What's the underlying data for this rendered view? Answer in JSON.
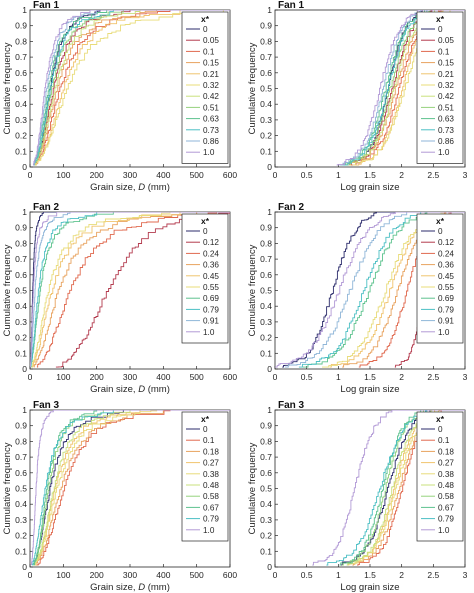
{
  "colors": {
    "0": "#2b2b6b",
    "0.05": "#b33a4d",
    "0.1": "#e0694f",
    "0.12": "#b33a4d",
    "0.15": "#e8a25e",
    "0.18": "#e8a25e",
    "0.21": "#f0c46e",
    "0.24": "#e0694f",
    "0.27": "#f0c46e",
    "0.32": "#e8dc7a",
    "0.36": "#e8a25e",
    "0.38": "#e8dc7a",
    "0.42": "#c9e07c",
    "0.45": "#f0c46e",
    "0.48": "#c9e07c",
    "0.51": "#95d27e",
    "0.55": "#e8dc7a",
    "0.58": "#95d27e",
    "0.63": "#5dc28e",
    "0.67": "#5dc28e",
    "0.69": "#5dc28e",
    "0.73": "#4bbfc4",
    "0.79": "#4bbfc4",
    "0.86": "#8fb6d8",
    "0.91": "#8fb6d8",
    "1.0": "#b29ad6"
  },
  "chart_data": [
    {
      "type": "line",
      "panel": "fan1-linear",
      "title": "Fan 1",
      "xlabel_prefix": "Grain size, ",
      "xlabel_var": "D",
      "xlabel_suffix": " (mm)",
      "ylabel": "Cumulative frequency",
      "xlim": [
        0,
        600
      ],
      "ylim": [
        0,
        1
      ],
      "scale": "linear",
      "xticks": [
        "0",
        "100",
        "200",
        "300",
        "400",
        "500",
        "600"
      ],
      "yticks": [
        "0",
        "0.1",
        "0.2",
        "0.3",
        "0.4",
        "0.5",
        "0.6",
        "0.7",
        "0.8",
        "0.9",
        "1"
      ],
      "legend_title": "x*",
      "legend_position": "top-right",
      "series": [
        {
          "name": "0",
          "d50": 60,
          "dmax": 210
        },
        {
          "name": "0.05",
          "d50": 70,
          "dmax": 300
        },
        {
          "name": "0.1",
          "d50": 90,
          "dmax": 420
        },
        {
          "name": "0.15",
          "d50": 80,
          "dmax": 380
        },
        {
          "name": "0.21",
          "d50": 100,
          "dmax": 450
        },
        {
          "name": "0.32",
          "d50": 110,
          "dmax": 580
        },
        {
          "name": "0.42",
          "d50": 75,
          "dmax": 330
        },
        {
          "name": "0.51",
          "d50": 65,
          "dmax": 280
        },
        {
          "name": "0.63",
          "d50": 55,
          "dmax": 230
        },
        {
          "name": "0.73",
          "d50": 60,
          "dmax": 250
        },
        {
          "name": "0.86",
          "d50": 50,
          "dmax": 200
        },
        {
          "name": "1.0",
          "d50": 45,
          "dmax": 180
        }
      ]
    },
    {
      "type": "line",
      "panel": "fan1-log",
      "title": "Fan 1",
      "xlabel": "Log grain size",
      "ylabel": "Cumulative frequency",
      "xlim": [
        0,
        3
      ],
      "ylim": [
        0,
        1
      ],
      "scale": "log",
      "xticks": [
        "0",
        "0.5",
        "1",
        "1.5",
        "2",
        "2.5",
        "3"
      ],
      "yticks": [
        "0",
        "0.1",
        "0.2",
        "0.3",
        "0.4",
        "0.5",
        "0.6",
        "0.7",
        "0.8",
        "0.9",
        "1"
      ],
      "legend_title": "x*",
      "legend_position": "top-right",
      "series_from": 0
    },
    {
      "type": "line",
      "panel": "fan2-linear",
      "title": "Fan 2",
      "xlabel_prefix": "Grain size, ",
      "xlabel_var": "D",
      "xlabel_suffix": " (mm)",
      "ylabel": "Cumulative frequency",
      "xlim": [
        0,
        600
      ],
      "ylim": [
        0,
        1
      ],
      "scale": "linear",
      "xticks": [
        "0",
        "100",
        "200",
        "300",
        "400",
        "500",
        "600"
      ],
      "yticks": [
        "0",
        "0.1",
        "0.2",
        "0.3",
        "0.4",
        "0.5",
        "0.6",
        "0.7",
        "0.8",
        "0.9",
        "1"
      ],
      "legend_title": "x*",
      "legend_position": "top-right",
      "series": [
        {
          "name": "0",
          "d50": 8,
          "dmax": 40
        },
        {
          "name": "0.12",
          "d50": 230,
          "dmax": 600
        },
        {
          "name": "0.24",
          "d50": 120,
          "dmax": 560
        },
        {
          "name": "0.36",
          "d50": 85,
          "dmax": 500
        },
        {
          "name": "0.45",
          "d50": 65,
          "dmax": 450
        },
        {
          "name": "0.55",
          "d50": 55,
          "dmax": 420
        },
        {
          "name": "0.69",
          "d50": 30,
          "dmax": 250
        },
        {
          "name": "0.79",
          "d50": 25,
          "dmax": 200
        },
        {
          "name": "0.91",
          "d50": 15,
          "dmax": 120
        },
        {
          "name": "1.0",
          "d50": 10,
          "dmax": 80
        }
      ]
    },
    {
      "type": "line",
      "panel": "fan2-log",
      "title": "Fan 2",
      "xlabel": "Log grain size",
      "ylabel": "Cumulative frequency",
      "xlim": [
        0,
        3
      ],
      "ylim": [
        0,
        1
      ],
      "scale": "log",
      "xticks": [
        "0",
        "0.5",
        "1",
        "1.5",
        "2",
        "2.5",
        "3"
      ],
      "yticks": [
        "0",
        "0.1",
        "0.2",
        "0.3",
        "0.4",
        "0.5",
        "0.6",
        "0.7",
        "0.8",
        "0.9",
        "1"
      ],
      "legend_title": "x*",
      "legend_position": "top-right",
      "series_from": 2
    },
    {
      "type": "line",
      "panel": "fan3-linear",
      "title": "Fan 3",
      "xlabel_prefix": "Grain size, ",
      "xlabel_var": "D",
      "xlabel_suffix": " (mm)",
      "ylabel": "Cumulative frequency",
      "xlim": [
        0,
        600
      ],
      "ylim": [
        0,
        1
      ],
      "scale": "linear",
      "xticks": [
        "0",
        "100",
        "200",
        "300",
        "400",
        "500",
        "600"
      ],
      "yticks": [
        "0",
        "0.1",
        "0.2",
        "0.3",
        "0.4",
        "0.5",
        "0.6",
        "0.7",
        "0.8",
        "0.9",
        "1"
      ],
      "legend_title": "x*",
      "legend_position": "top-right",
      "series": [
        {
          "name": "0",
          "d50": 60,
          "dmax": 280
        },
        {
          "name": "0.1",
          "d50": 100,
          "dmax": 420
        },
        {
          "name": "0.18",
          "d50": 90,
          "dmax": 400
        },
        {
          "name": "0.27",
          "d50": 75,
          "dmax": 330
        },
        {
          "name": "0.38",
          "d50": 80,
          "dmax": 380
        },
        {
          "name": "0.48",
          "d50": 70,
          "dmax": 300
        },
        {
          "name": "0.58",
          "d50": 55,
          "dmax": 220
        },
        {
          "name": "0.67",
          "d50": 50,
          "dmax": 200
        },
        {
          "name": "0.79",
          "d50": 45,
          "dmax": 250
        },
        {
          "name": "1.0",
          "d50": 18,
          "dmax": 70
        }
      ]
    },
    {
      "type": "line",
      "panel": "fan3-log",
      "title": "Fan 3",
      "xlabel": "Log grain size",
      "ylabel": "Cumulative frequency",
      "xlim": [
        0,
        3
      ],
      "ylim": [
        0,
        1
      ],
      "scale": "log",
      "xticks": [
        "0",
        "0.5",
        "1",
        "1.5",
        "2",
        "2.5",
        "3"
      ],
      "yticks": [
        "0",
        "0.1",
        "0.2",
        "0.3",
        "0.4",
        "0.5",
        "0.6",
        "0.7",
        "0.8",
        "0.9",
        "1"
      ],
      "legend_title": "x*",
      "legend_position": "top-right",
      "series_from": 4
    }
  ]
}
